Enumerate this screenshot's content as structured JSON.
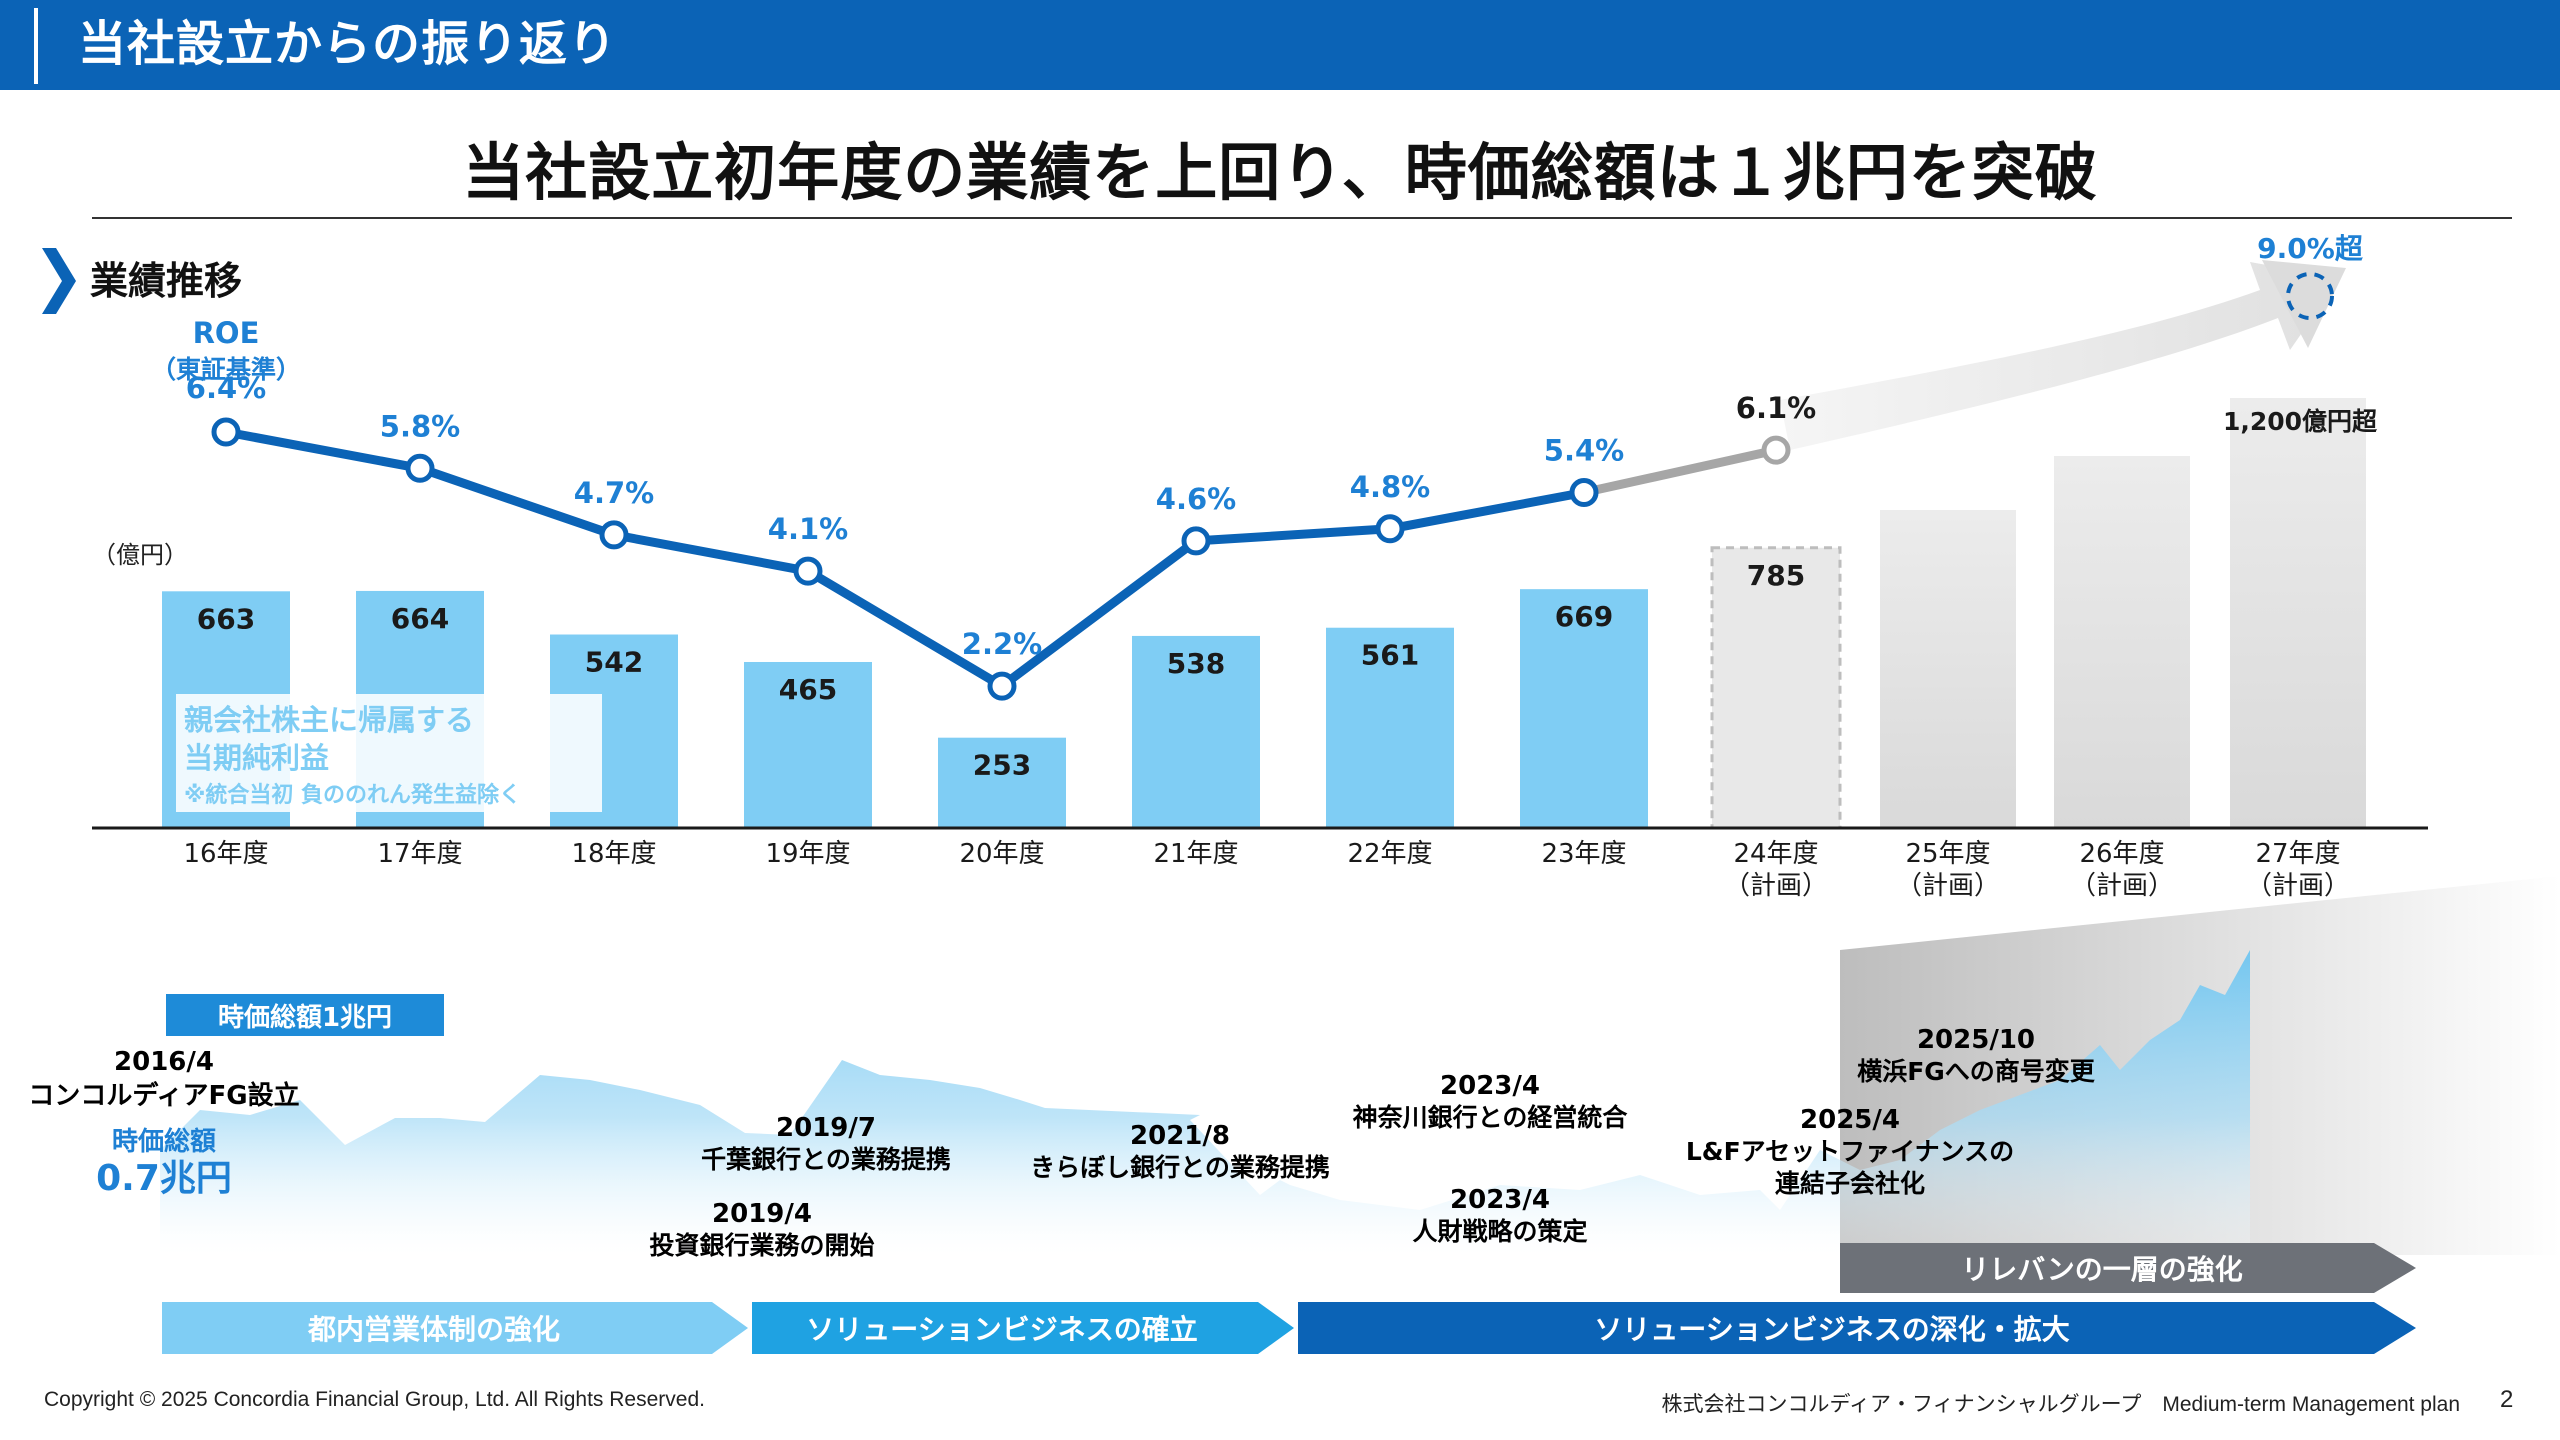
{
  "header": {
    "title": "当社設立からの振り返り"
  },
  "headline": "当社設立初年度の業績を上回り、時価総額は１兆円を突破",
  "section": {
    "title": "業績推移"
  },
  "roe_label": {
    "line1": "ROE",
    "line2": "（東証基準）"
  },
  "unit_label": "（億円）",
  "profit_label": {
    "line1": "親会社株主に帰属する",
    "line2": "当期純利益",
    "line3": "※統合当初 負ののれん発生益除く"
  },
  "target_label": "9.0%超",
  "target_profit_label": "1,200億円超",
  "chart_data": {
    "type": "bar",
    "categories": [
      "16年度",
      "17年度",
      "18年度",
      "19年度",
      "20年度",
      "21年度",
      "22年度",
      "23年度",
      "24年度",
      "25年度",
      "26年度",
      "27年度"
    ],
    "category_sublabels": [
      "",
      "",
      "",
      "",
      "",
      "",
      "",
      "",
      "（計画）",
      "（計画）",
      "（計画）",
      "（計画）"
    ],
    "series": [
      {
        "name": "親会社株主に帰属する当期純利益",
        "values": [
          663,
          664,
          542,
          465,
          253,
          538,
          561,
          669,
          785,
          null,
          null,
          null
        ]
      },
      {
        "name": "ROE",
        "values": [
          6.4,
          5.8,
          4.7,
          4.1,
          2.2,
          4.6,
          4.8,
          5.4,
          6.1,
          null,
          null,
          9.0
        ]
      }
    ],
    "bar_labels": [
      "663",
      "664",
      "542",
      "465",
      "253",
      "538",
      "561",
      "669",
      "785"
    ],
    "roe_labels": [
      "6.4%",
      "5.8%",
      "4.7%",
      "4.1%",
      "2.2%",
      "4.6%",
      "4.8%",
      "5.4%",
      "6.1%"
    ],
    "ylabel": "（億円）",
    "colors": {
      "actual_bar": "#7fcdf4",
      "plan_bar": "#e6e6e6",
      "roe_line": "#0b63b6",
      "plan_line": "#a6a6a6"
    }
  },
  "timeline": {
    "market_cap_badge": "時価総額1兆円",
    "start": {
      "date": "2016/4",
      "event": "コンコルディアFG設立",
      "cap_label": "時価総額",
      "cap_value": "0.7兆円"
    },
    "events": [
      {
        "date": "2019/7",
        "text": "千葉銀行との業務提携"
      },
      {
        "date": "2019/4",
        "text": "投資銀行業務の開始"
      },
      {
        "date": "2021/8",
        "text": "きらぼし銀行との業務提携"
      },
      {
        "date": "2023/4",
        "text": "神奈川銀行との経営統合"
      },
      {
        "date": "2023/4",
        "text": "人財戦略の策定"
      },
      {
        "date": "2025/10",
        "text": "横浜FGへの商号変更"
      },
      {
        "date": "2025/4",
        "text": "L&Fアセットファイナンスの",
        "text2": "連結子会社化"
      }
    ],
    "phases": [
      "都内営業体制の強化",
      "ソリューションビジネスの確立",
      "ソリューションビジネスの深化・拡大",
      "リレバンの一層の強化"
    ]
  },
  "footer": {
    "copyright": "Copyright © 2025 Concordia Financial Group, Ltd. All Rights Reserved.",
    "company": "株式会社コンコルディア・フィナンシャルグループ　Medium-term Management plan",
    "page": "2"
  }
}
